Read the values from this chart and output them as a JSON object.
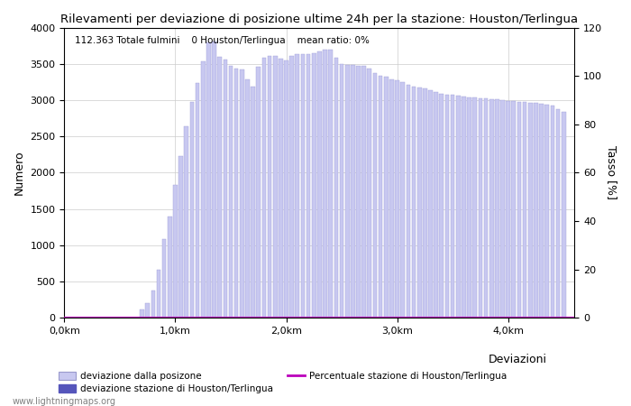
{
  "title": "Rilevamenti per deviazione di posizione ultime 24h per la stazione: Houston/Terlingua",
  "subtitle": "112.363 Totale fulmini    0 Houston/Terlingua    mean ratio: 0%",
  "ylabel_left": "Numero",
  "ylabel_right": "Tasso [%]",
  "bar_centers": [
    0.1,
    0.2,
    0.3,
    0.4,
    0.5,
    0.6,
    0.7,
    0.75,
    0.8,
    0.85,
    0.9,
    0.95,
    1.0,
    1.05,
    1.1,
    1.15,
    1.2,
    1.25,
    1.3,
    1.35,
    1.4,
    1.45,
    1.5,
    1.55,
    1.6,
    1.65,
    1.7,
    1.75,
    1.8,
    1.85,
    1.9,
    1.95,
    2.0,
    2.05,
    2.1,
    2.15,
    2.2,
    2.25,
    2.3,
    2.35,
    2.4,
    2.45,
    2.5,
    2.55,
    2.6,
    2.65,
    2.7,
    2.75,
    2.8,
    2.85,
    2.9,
    2.95,
    3.0,
    3.05,
    3.1,
    3.15,
    3.2,
    3.25,
    3.3,
    3.35,
    3.4,
    3.45,
    3.5,
    3.55,
    3.6,
    3.65,
    3.7,
    3.75,
    3.8,
    3.85,
    3.9,
    3.95,
    4.0,
    4.05,
    4.1,
    4.15,
    4.2,
    4.25,
    4.3,
    4.35,
    4.4,
    4.45,
    4.5
  ],
  "bar_heights": [
    0,
    0,
    0,
    0,
    0,
    0,
    120,
    200,
    380,
    660,
    1080,
    1400,
    1830,
    2230,
    2640,
    2980,
    3230,
    3530,
    3790,
    3810,
    3600,
    3560,
    3470,
    3440,
    3420,
    3280,
    3190,
    3460,
    3580,
    3610,
    3610,
    3570,
    3550,
    3610,
    3630,
    3640,
    3630,
    3650,
    3670,
    3690,
    3690,
    3590,
    3500,
    3480,
    3490,
    3470,
    3470,
    3440,
    3370,
    3340,
    3320,
    3290,
    3270,
    3250,
    3210,
    3190,
    3180,
    3160,
    3140,
    3110,
    3090,
    3070,
    3070,
    3060,
    3050,
    3040,
    3040,
    3030,
    3020,
    3010,
    3010,
    3000,
    2990,
    2990,
    2980,
    2970,
    2960,
    2960,
    2950,
    2940,
    2930,
    2880,
    2840
  ],
  "bar_color": "#c8c8f0",
  "bar_edge_color": "#a0a0d8",
  "bar_color2": "#5555bb",
  "line_color": "#bb00bb",
  "xlim": [
    0,
    4.6
  ],
  "ylim_left": [
    0,
    4000
  ],
  "ylim_right": [
    0,
    120
  ],
  "xtick_positions": [
    0.0,
    1.0,
    2.0,
    3.0,
    4.0
  ],
  "xtick_labels": [
    "0,0km",
    "1,0km",
    "2,0km",
    "3,0km",
    "4,0km"
  ],
  "ytick_left": [
    0,
    500,
    1000,
    1500,
    2000,
    2500,
    3000,
    3500,
    4000
  ],
  "ytick_right": [
    0,
    20,
    40,
    60,
    80,
    100,
    120
  ],
  "grid_color": "#cccccc",
  "bg_color": "#ffffff",
  "bar_width": 0.038,
  "watermark": "www.lightningmaps.org",
  "legend_label1": "deviazione dalla posizone",
  "legend_label2": "deviazione stazione di Houston/Terlingua",
  "legend_label3": "Percentuale stazione di Houston/Terlingua",
  "legend_title": "Deviazioni"
}
